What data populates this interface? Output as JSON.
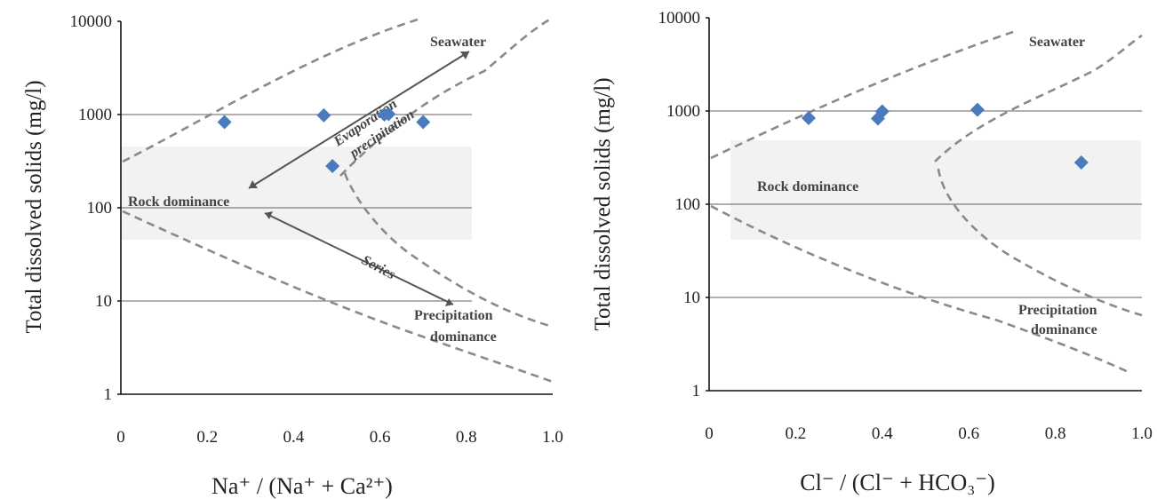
{
  "chart_data": [
    {
      "type": "scatter",
      "title": "",
      "xlabel": "Na⁺ / (Na⁺ + Ca²⁺)",
      "ylabel": "Total dissolved solids (mg/l)",
      "xlim": [
        0,
        1.0
      ],
      "ylim": [
        1,
        10000
      ],
      "yscale": "log",
      "grid": "horizontal lines at 10, 100, 1000",
      "x_ticks": [
        "0",
        "0.2",
        "0.4",
        "0.6",
        "0.8",
        "1.0"
      ],
      "y_ticks": [
        "1",
        "10",
        "100",
        "1000",
        "10000"
      ],
      "marker_color": "#4a7bbd",
      "points": [
        {
          "x": 0.24,
          "y": 830
        },
        {
          "x": 0.47,
          "y": 980
        },
        {
          "x": 0.49,
          "y": 280
        },
        {
          "x": 0.61,
          "y": 1000
        },
        {
          "x": 0.62,
          "y": 1010
        },
        {
          "x": 0.7,
          "y": 830
        }
      ],
      "annotations": {
        "seawater": "Seawater",
        "evaporation_1": "Evaporation",
        "evaporation_2": "precipitation",
        "rock": "Rock dominance",
        "series": "Series",
        "precip_1": "Precipitation",
        "precip_2": "dominance"
      }
    },
    {
      "type": "scatter",
      "title": "",
      "xlabel": "Cl⁻ / (Cl⁻ + HCO₃⁻)",
      "ylabel": "Total dissolved solids (mg/l)",
      "xlim": [
        0,
        1.0
      ],
      "ylim": [
        1,
        10000
      ],
      "yscale": "log",
      "grid": "horizontal lines at 10, 100, 1000",
      "x_ticks": [
        "0",
        "0.2",
        "0.4",
        "0.6",
        "0.8",
        "1.0"
      ],
      "y_ticks": [
        "1",
        "10",
        "100",
        "1000",
        "10000"
      ],
      "marker_color": "#4a7bbd",
      "points": [
        {
          "x": 0.23,
          "y": 840
        },
        {
          "x": 0.39,
          "y": 830
        },
        {
          "x": 0.4,
          "y": 990
        },
        {
          "x": 0.62,
          "y": 1030
        },
        {
          "x": 0.86,
          "y": 280
        }
      ],
      "annotations": {
        "seawater": "Seawater",
        "rock": "Rock dominance",
        "precip_1": "Precipitation",
        "precip_2": "dominance"
      }
    }
  ]
}
